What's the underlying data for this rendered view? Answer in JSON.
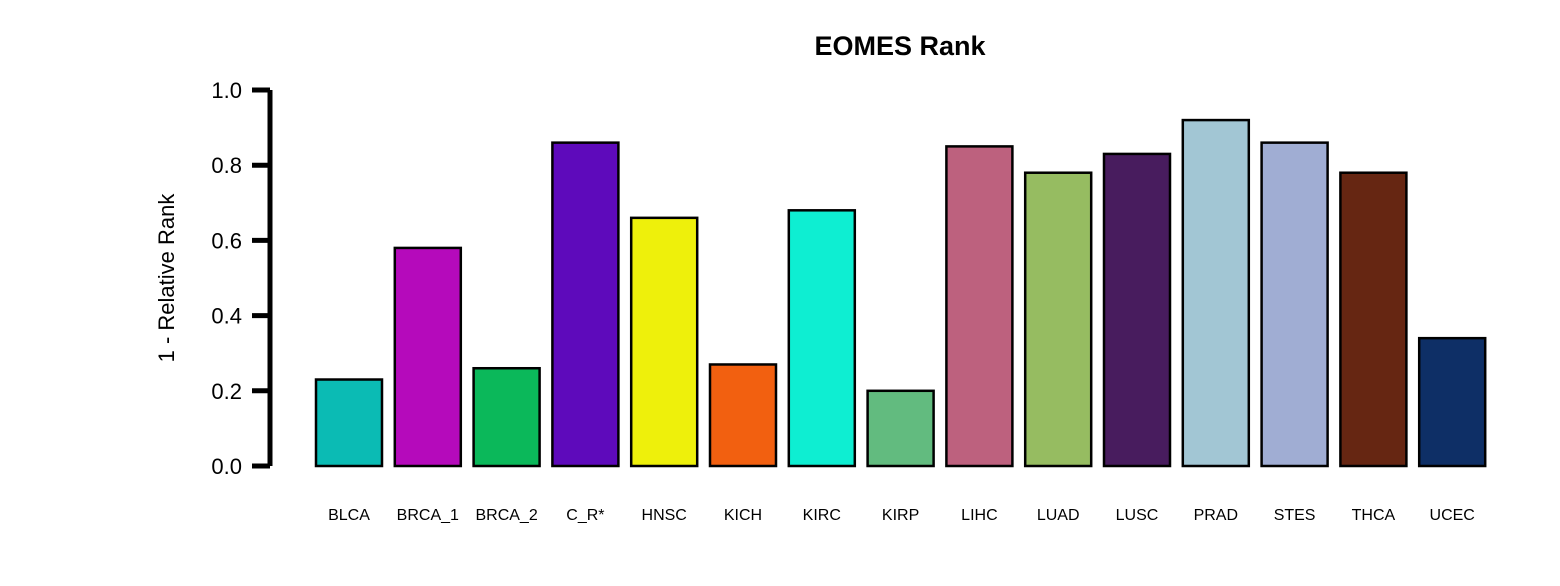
{
  "chart_data": {
    "type": "bar",
    "title": "EOMES Rank",
    "ylabel": "1 - Relative Rank",
    "xlabel": "",
    "ylim": [
      0,
      1
    ],
    "yticks": [
      0.0,
      0.2,
      0.4,
      0.6,
      0.8,
      1.0
    ],
    "ytick_labels": [
      "0.0",
      "0.2",
      "0.4",
      "0.6",
      "0.8",
      "1.0"
    ],
    "categories": [
      "BLCA",
      "BRCA_1",
      "BRCA_2",
      "C_R*",
      "HNSC",
      "KICH",
      "KIRC",
      "KIRP",
      "LIHC",
      "LUAD",
      "LUSC",
      "PRAD",
      "STES",
      "THCA",
      "UCEC"
    ],
    "values": [
      0.23,
      0.58,
      0.26,
      0.86,
      0.66,
      0.27,
      0.68,
      0.2,
      0.85,
      0.78,
      0.83,
      0.92,
      0.86,
      0.78,
      0.34
    ],
    "colors": [
      "#0bbbb4",
      "#b50abb",
      "#0bb85a",
      "#5e0abb",
      "#eef00b",
      "#f26010",
      "#0eeed2",
      "#62bb7f",
      "#bd617e",
      "#96bc61",
      "#481c5e",
      "#a2c6d4",
      "#a0add3",
      "#662612",
      "#0e2f66"
    ],
    "grid": false,
    "legend": "none"
  }
}
